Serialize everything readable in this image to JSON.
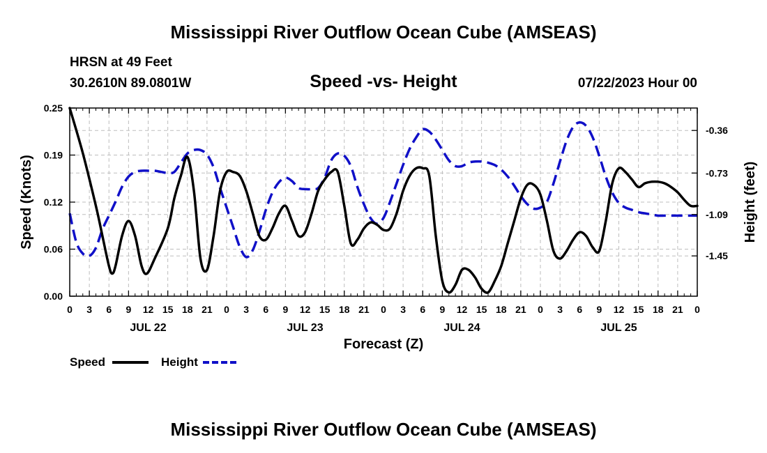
{
  "header": {
    "title": "Mississippi River Outflow Ocean Cube (AMSEAS)",
    "station": "HRSN at 49 Feet",
    "coords": "30.2610N  89.0801W",
    "date": "07/22/2023 Hour 00",
    "footer_title": "Mississippi River Outflow Ocean Cube (AMSEAS)"
  },
  "chart_data": {
    "type": "line",
    "title": "Speed -vs- Height",
    "xlabel": "Forecast (Z)",
    "ylabel": "Speed (Knots)",
    "y2label": "Height (feet)",
    "xlim": [
      0,
      96
    ],
    "ylim": [
      0,
      0.25
    ],
    "y2lim": [
      -1.8,
      -0.165
    ],
    "x_tick_labels": [
      "0",
      "3",
      "6",
      "9",
      "12",
      "15",
      "18",
      "21",
      "0",
      "3",
      "6",
      "9",
      "12",
      "15",
      "18",
      "21",
      "0",
      "3",
      "6",
      "9",
      "12",
      "15",
      "18",
      "21",
      "0",
      "3",
      "6",
      "9",
      "12",
      "15",
      "18",
      "21",
      "0"
    ],
    "day_labels": [
      "JUL 22",
      "JUL 23",
      "JUL 24",
      "JUL 25"
    ],
    "y_ticks": [
      "0.00",
      "0.06",
      "0.12",
      "0.19",
      "0.25"
    ],
    "y_tick_values": [
      0,
      0.0625,
      0.125,
      0.1875,
      0.25
    ],
    "y2_ticks": [
      "-1.45",
      "-1.09",
      "-0.73",
      "-0.36"
    ],
    "y2_tick_values": [
      -1.45,
      -1.09,
      -0.73,
      -0.36
    ],
    "grid": true,
    "legend": {
      "position": "bottom-left",
      "speed": "Speed",
      "height": "Height"
    },
    "colors": {
      "speed": "#000000",
      "height": "#1010c8",
      "grid": "#bdbdbd"
    },
    "series": [
      {
        "name": "Speed",
        "axis": "left",
        "style": "solid",
        "points": [
          [
            0,
            0.25
          ],
          [
            2,
            0.19
          ],
          [
            4,
            0.12
          ],
          [
            5,
            0.08
          ],
          [
            6,
            0.04
          ],
          [
            6.5,
            0.03
          ],
          [
            7,
            0.04
          ],
          [
            8,
            0.08
          ],
          [
            9,
            0.1
          ],
          [
            10,
            0.08
          ],
          [
            11,
            0.04
          ],
          [
            11.8,
            0.03
          ],
          [
            13,
            0.05
          ],
          [
            15,
            0.09
          ],
          [
            16,
            0.13
          ],
          [
            17,
            0.16
          ],
          [
            18,
            0.185
          ],
          [
            19,
            0.14
          ],
          [
            20,
            0.05
          ],
          [
            21,
            0.035
          ],
          [
            22,
            0.08
          ],
          [
            23,
            0.14
          ],
          [
            24,
            0.165
          ],
          [
            25,
            0.165
          ],
          [
            26,
            0.16
          ],
          [
            27,
            0.14
          ],
          [
            28,
            0.11
          ],
          [
            29,
            0.08
          ],
          [
            30,
            0.075
          ],
          [
            31,
            0.09
          ],
          [
            32,
            0.11
          ],
          [
            33,
            0.12
          ],
          [
            34,
            0.1
          ],
          [
            35,
            0.08
          ],
          [
            36,
            0.085
          ],
          [
            37,
            0.11
          ],
          [
            38,
            0.14
          ],
          [
            39,
            0.155
          ],
          [
            40,
            0.165
          ],
          [
            41,
            0.165
          ],
          [
            42,
            0.12
          ],
          [
            43,
            0.07
          ],
          [
            44,
            0.075
          ],
          [
            45,
            0.09
          ],
          [
            46,
            0.098
          ],
          [
            47,
            0.095
          ],
          [
            48,
            0.088
          ],
          [
            49,
            0.09
          ],
          [
            50,
            0.11
          ],
          [
            51,
            0.14
          ],
          [
            52,
            0.16
          ],
          [
            53,
            0.17
          ],
          [
            54,
            0.17
          ],
          [
            55,
            0.16
          ],
          [
            56,
            0.08
          ],
          [
            57,
            0.02
          ],
          [
            58,
            0.005
          ],
          [
            59,
            0.015
          ],
          [
            60,
            0.035
          ],
          [
            61,
            0.035
          ],
          [
            62,
            0.025
          ],
          [
            63,
            0.01
          ],
          [
            64,
            0.005
          ],
          [
            65,
            0.02
          ],
          [
            66,
            0.04
          ],
          [
            67,
            0.07
          ],
          [
            68,
            0.1
          ],
          [
            69,
            0.13
          ],
          [
            70,
            0.148
          ],
          [
            71,
            0.148
          ],
          [
            72,
            0.135
          ],
          [
            73,
            0.1
          ],
          [
            74,
            0.06
          ],
          [
            75,
            0.05
          ],
          [
            76,
            0.06
          ],
          [
            77,
            0.075
          ],
          [
            78,
            0.085
          ],
          [
            79,
            0.08
          ],
          [
            80,
            0.065
          ],
          [
            81,
            0.06
          ],
          [
            82,
            0.1
          ],
          [
            83,
            0.15
          ],
          [
            84,
            0.17
          ],
          [
            85,
            0.165
          ],
          [
            86,
            0.155
          ],
          [
            87,
            0.145
          ],
          [
            88,
            0.15
          ],
          [
            89,
            0.152
          ],
          [
            90,
            0.152
          ],
          [
            91,
            0.15
          ],
          [
            92,
            0.145
          ],
          [
            93,
            0.138
          ],
          [
            94,
            0.128
          ],
          [
            95,
            0.12
          ],
          [
            96,
            0.12
          ]
        ]
      },
      {
        "name": "Height",
        "axis": "right",
        "style": "dashed",
        "points": [
          [
            0,
            -1.08
          ],
          [
            1,
            -1.33
          ],
          [
            2,
            -1.43
          ],
          [
            3,
            -1.45
          ],
          [
            4,
            -1.38
          ],
          [
            5,
            -1.22
          ],
          [
            6,
            -1.1
          ],
          [
            7,
            -0.98
          ],
          [
            8,
            -0.85
          ],
          [
            9,
            -0.76
          ],
          [
            10,
            -0.72
          ],
          [
            11,
            -0.71
          ],
          [
            12,
            -0.71
          ],
          [
            13,
            -0.71
          ],
          [
            14,
            -0.72
          ],
          [
            15,
            -0.73
          ],
          [
            16,
            -0.72
          ],
          [
            17,
            -0.64
          ],
          [
            18,
            -0.56
          ],
          [
            19,
            -0.53
          ],
          [
            20,
            -0.53
          ],
          [
            21,
            -0.57
          ],
          [
            22,
            -0.68
          ],
          [
            23,
            -0.86
          ],
          [
            24,
            -1.03
          ],
          [
            25,
            -1.2
          ],
          [
            26,
            -1.37
          ],
          [
            27,
            -1.46
          ],
          [
            28,
            -1.4
          ],
          [
            29,
            -1.24
          ],
          [
            30,
            -1.05
          ],
          [
            31,
            -0.9
          ],
          [
            32,
            -0.81
          ],
          [
            33,
            -0.77
          ],
          [
            34,
            -0.8
          ],
          [
            35,
            -0.86
          ],
          [
            36,
            -0.87
          ],
          [
            37,
            -0.87
          ],
          [
            38,
            -0.86
          ],
          [
            39,
            -0.77
          ],
          [
            40,
            -0.62
          ],
          [
            41,
            -0.56
          ],
          [
            42,
            -0.58
          ],
          [
            43,
            -0.67
          ],
          [
            44,
            -0.85
          ],
          [
            45,
            -1.0
          ],
          [
            46,
            -1.12
          ],
          [
            47,
            -1.17
          ],
          [
            48,
            -1.12
          ],
          [
            49,
            -0.98
          ],
          [
            50,
            -0.82
          ],
          [
            51,
            -0.66
          ],
          [
            52,
            -0.52
          ],
          [
            53,
            -0.42
          ],
          [
            54,
            -0.35
          ],
          [
            55,
            -0.37
          ],
          [
            56,
            -0.44
          ],
          [
            57,
            -0.53
          ],
          [
            58,
            -0.62
          ],
          [
            59,
            -0.67
          ],
          [
            60,
            -0.67
          ],
          [
            61,
            -0.64
          ],
          [
            62,
            -0.63
          ],
          [
            63,
            -0.63
          ],
          [
            64,
            -0.64
          ],
          [
            65,
            -0.66
          ],
          [
            66,
            -0.7
          ],
          [
            67,
            -0.76
          ],
          [
            68,
            -0.84
          ],
          [
            69,
            -0.93
          ],
          [
            70,
            -1.0
          ],
          [
            71,
            -1.04
          ],
          [
            72,
            -1.03
          ],
          [
            73,
            -0.98
          ],
          [
            74,
            -0.82
          ],
          [
            75,
            -0.63
          ],
          [
            76,
            -0.45
          ],
          [
            77,
            -0.33
          ],
          [
            78,
            -0.29
          ],
          [
            79,
            -0.32
          ],
          [
            80,
            -0.42
          ],
          [
            81,
            -0.58
          ],
          [
            82,
            -0.76
          ],
          [
            83,
            -0.9
          ],
          [
            84,
            -0.99
          ],
          [
            85,
            -1.03
          ],
          [
            86,
            -1.05
          ],
          [
            87,
            -1.07
          ],
          [
            88,
            -1.08
          ],
          [
            89,
            -1.09
          ],
          [
            90,
            -1.1
          ],
          [
            91,
            -1.1
          ],
          [
            92,
            -1.1
          ],
          [
            93,
            -1.1
          ],
          [
            94,
            -1.1
          ],
          [
            95,
            -1.1
          ],
          [
            96,
            -1.1
          ]
        ]
      }
    ]
  }
}
